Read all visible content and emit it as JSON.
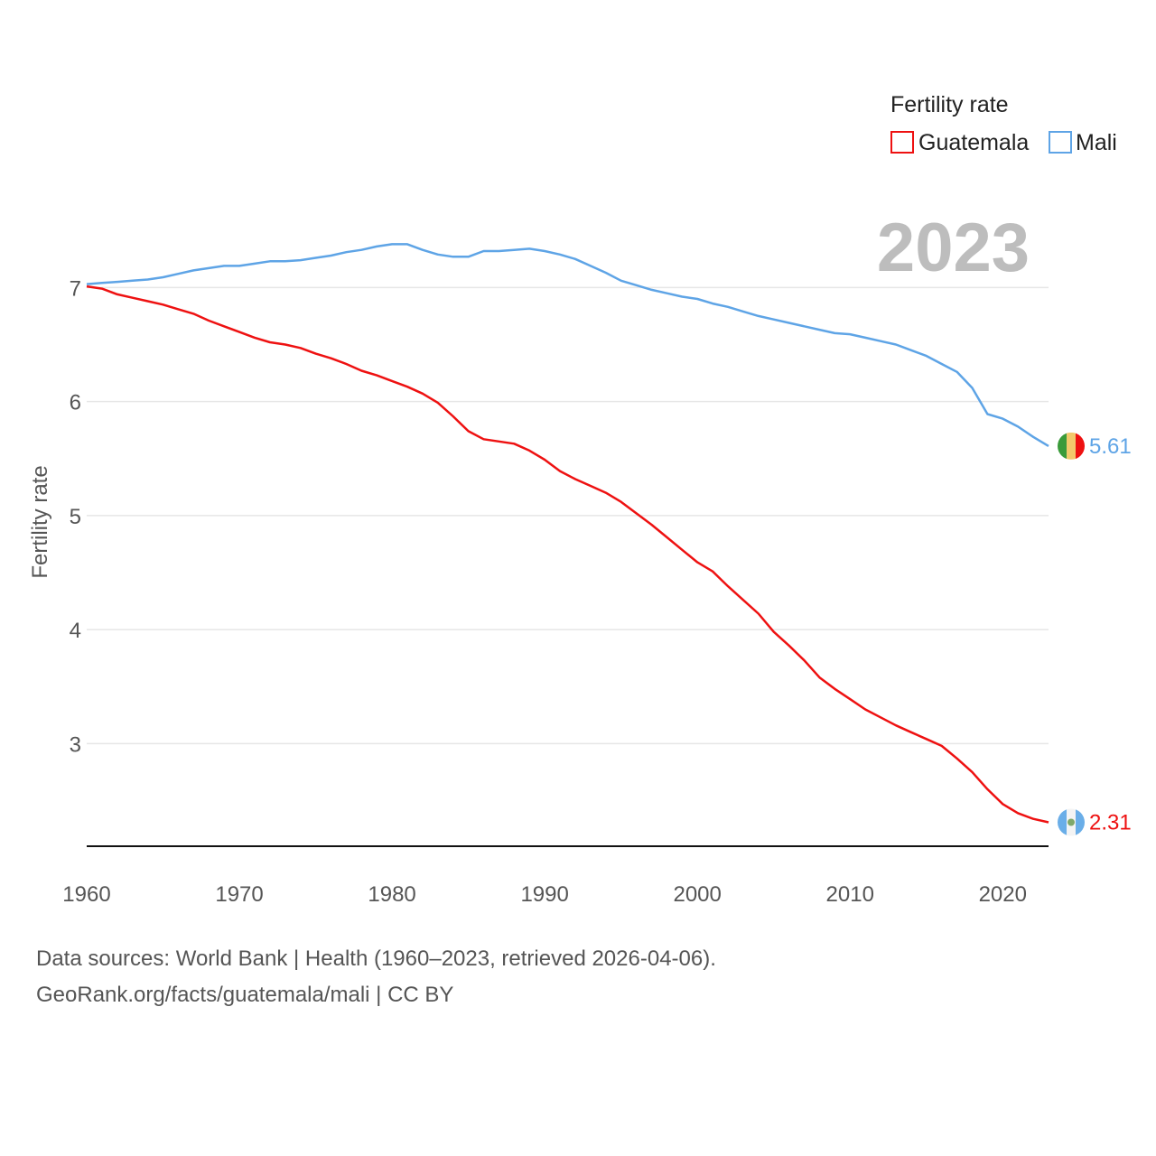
{
  "chart_data": {
    "type": "line",
    "title": "",
    "xlabel": "",
    "ylabel": "Fertility rate",
    "xlim": [
      1960,
      2023
    ],
    "ylim": [
      2.1,
      7.7
    ],
    "x_ticks": [
      1960,
      1970,
      1980,
      1990,
      2000,
      2010,
      2020
    ],
    "y_ticks": [
      3,
      4,
      5,
      6,
      7
    ],
    "legend_title": "Fertility rate",
    "year_label": "2023",
    "series": [
      {
        "name": "Guatemala",
        "color": "#ee1111",
        "end_label": "2.31",
        "flag": "guatemala-flag",
        "x": [
          1960,
          1961,
          1962,
          1963,
          1964,
          1965,
          1966,
          1967,
          1968,
          1969,
          1970,
          1971,
          1972,
          1973,
          1974,
          1975,
          1976,
          1977,
          1978,
          1979,
          1980,
          1981,
          1982,
          1983,
          1984,
          1985,
          1986,
          1987,
          1988,
          1989,
          1990,
          1991,
          1992,
          1993,
          1994,
          1995,
          1996,
          1997,
          1998,
          1999,
          2000,
          2001,
          2002,
          2003,
          2004,
          2005,
          2006,
          2007,
          2008,
          2009,
          2010,
          2011,
          2012,
          2013,
          2014,
          2015,
          2016,
          2017,
          2018,
          2019,
          2020,
          2021,
          2022,
          2023
        ],
        "values": [
          7.01,
          6.99,
          6.94,
          6.91,
          6.88,
          6.85,
          6.81,
          6.77,
          6.71,
          6.66,
          6.61,
          6.56,
          6.52,
          6.5,
          6.47,
          6.42,
          6.38,
          6.33,
          6.27,
          6.23,
          6.18,
          6.13,
          6.07,
          5.99,
          5.87,
          5.74,
          5.67,
          5.65,
          5.63,
          5.57,
          5.49,
          5.39,
          5.32,
          5.26,
          5.2,
          5.12,
          5.02,
          4.92,
          4.81,
          4.7,
          4.59,
          4.51,
          4.38,
          4.26,
          4.14,
          3.98,
          3.86,
          3.73,
          3.58,
          3.48,
          3.39,
          3.3,
          3.23,
          3.16,
          3.1,
          3.04,
          2.98,
          2.87,
          2.75,
          2.6,
          2.47,
          2.39,
          2.34,
          2.31
        ]
      },
      {
        "name": "Mali",
        "color": "#5ea4e6",
        "end_label": "5.61",
        "flag": "mali-flag",
        "x": [
          1960,
          1961,
          1962,
          1963,
          1964,
          1965,
          1966,
          1967,
          1968,
          1969,
          1970,
          1971,
          1972,
          1973,
          1974,
          1975,
          1976,
          1977,
          1978,
          1979,
          1980,
          1981,
          1982,
          1983,
          1984,
          1985,
          1986,
          1987,
          1988,
          1989,
          1990,
          1991,
          1992,
          1993,
          1994,
          1995,
          1996,
          1997,
          1998,
          1999,
          2000,
          2001,
          2002,
          2003,
          2004,
          2005,
          2006,
          2007,
          2008,
          2009,
          2010,
          2011,
          2012,
          2013,
          2014,
          2015,
          2016,
          2017,
          2018,
          2019,
          2020,
          2021,
          2022,
          2023
        ],
        "values": [
          7.03,
          7.04,
          7.05,
          7.06,
          7.07,
          7.09,
          7.12,
          7.15,
          7.17,
          7.19,
          7.19,
          7.21,
          7.23,
          7.23,
          7.24,
          7.26,
          7.28,
          7.31,
          7.33,
          7.36,
          7.38,
          7.38,
          7.33,
          7.29,
          7.27,
          7.27,
          7.32,
          7.32,
          7.33,
          7.34,
          7.32,
          7.29,
          7.25,
          7.19,
          7.13,
          7.06,
          7.02,
          6.98,
          6.95,
          6.92,
          6.9,
          6.86,
          6.83,
          6.79,
          6.75,
          6.72,
          6.69,
          6.66,
          6.63,
          6.6,
          6.59,
          6.56,
          6.53,
          6.5,
          6.45,
          6.4,
          6.33,
          6.26,
          6.12,
          5.89,
          5.85,
          5.78,
          5.69,
          5.61
        ]
      }
    ]
  },
  "footer": {
    "line1": "Data sources: World Bank | Health (1960–2023, retrieved 2026-04-06).",
    "line2": "GeoRank.org/facts/guatemala/mali | CC BY"
  }
}
